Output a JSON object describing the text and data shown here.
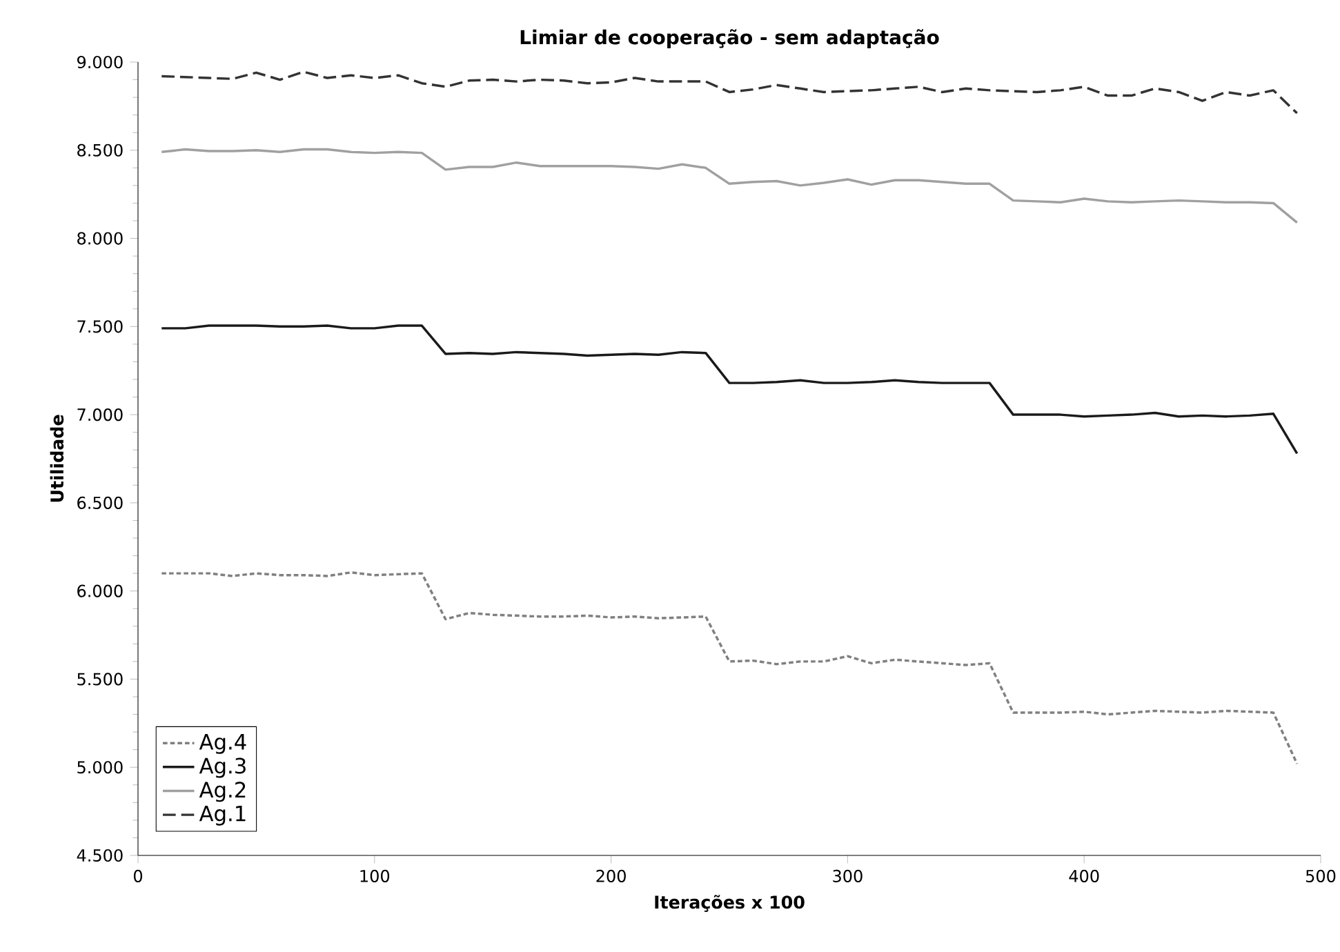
{
  "chart_data": {
    "type": "line",
    "title": "Limiar de cooperação - sem adaptação",
    "xlabel": "Iterações x 100",
    "ylabel": "Utilidade",
    "x": [
      10,
      20,
      30,
      40,
      50,
      60,
      70,
      80,
      90,
      100,
      110,
      120,
      130,
      140,
      150,
      160,
      170,
      180,
      190,
      200,
      210,
      220,
      230,
      240,
      250,
      260,
      270,
      280,
      290,
      300,
      310,
      320,
      330,
      340,
      350,
      360,
      370,
      380,
      390,
      400,
      410,
      420,
      430,
      440,
      450,
      460,
      470,
      480,
      490
    ],
    "series": [
      {
        "name": "Ag.4",
        "color": "#808080",
        "line_style": "dotted",
        "values": [
          6100,
          6100,
          6100,
          6085,
          6100,
          6090,
          6090,
          6085,
          6105,
          6090,
          6095,
          6100,
          5840,
          5875,
          5865,
          5860,
          5855,
          5855,
          5860,
          5850,
          5855,
          5845,
          5850,
          5855,
          5600,
          5605,
          5585,
          5600,
          5600,
          5630,
          5590,
          5610,
          5600,
          5590,
          5580,
          5590,
          5310,
          5310,
          5310,
          5315,
          5300,
          5310,
          5320,
          5315,
          5310,
          5320,
          5315,
          5310,
          5020
        ]
      },
      {
        "name": "Ag.3",
        "color": "#1a1a1a",
        "line_style": "solid",
        "values": [
          7490,
          7490,
          7505,
          7505,
          7505,
          7500,
          7500,
          7505,
          7490,
          7490,
          7505,
          7505,
          7345,
          7350,
          7345,
          7355,
          7350,
          7345,
          7335,
          7340,
          7345,
          7340,
          7355,
          7350,
          7180,
          7180,
          7185,
          7195,
          7180,
          7180,
          7185,
          7195,
          7185,
          7180,
          7180,
          7180,
          7000,
          7000,
          7000,
          6990,
          6995,
          7000,
          7010,
          6990,
          6995,
          6990,
          6995,
          7005,
          6780
        ]
      },
      {
        "name": "Ag.2",
        "color": "#a0a0a0",
        "line_style": "solid",
        "values": [
          8490,
          8505,
          8495,
          8495,
          8500,
          8490,
          8505,
          8505,
          8490,
          8485,
          8490,
          8485,
          8390,
          8405,
          8405,
          8430,
          8410,
          8410,
          8410,
          8410,
          8405,
          8395,
          8420,
          8400,
          8310,
          8320,
          8325,
          8300,
          8315,
          8335,
          8305,
          8330,
          8330,
          8320,
          8310,
          8310,
          8215,
          8210,
          8205,
          8225,
          8210,
          8205,
          8210,
          8215,
          8210,
          8205,
          8205,
          8200,
          8090
        ]
      },
      {
        "name": "Ag.1",
        "color": "#333333",
        "line_style": "dashed",
        "values": [
          8920,
          8915,
          8910,
          8905,
          8940,
          8900,
          8945,
          8910,
          8925,
          8910,
          8925,
          8880,
          8860,
          8895,
          8900,
          8890,
          8900,
          8895,
          8880,
          8885,
          8910,
          8890,
          8890,
          8890,
          8830,
          8845,
          8870,
          8850,
          8830,
          8835,
          8840,
          8850,
          8860,
          8830,
          8850,
          8840,
          8835,
          8830,
          8840,
          8860,
          8810,
          8810,
          8850,
          8830,
          8780,
          8830,
          8810,
          8840,
          8710
        ]
      }
    ],
    "xlim": [
      0,
      500
    ],
    "xticks": [
      0,
      100,
      200,
      300,
      400,
      500
    ],
    "ylim": [
      4500,
      9000
    ],
    "yticks": [
      {
        "value": 4500,
        "label": "4.500"
      },
      {
        "value": 5000,
        "label": "5.000"
      },
      {
        "value": 5500,
        "label": "5.500"
      },
      {
        "value": 6000,
        "label": "6.000"
      },
      {
        "value": 6500,
        "label": "6.500"
      },
      {
        "value": 7000,
        "label": "7.000"
      },
      {
        "value": 7500,
        "label": "7.500"
      },
      {
        "value": 8000,
        "label": "8.000"
      },
      {
        "value": 8500,
        "label": "8.500"
      },
      {
        "value": 9000,
        "label": "9.000"
      }
    ],
    "grid": false,
    "legend": "bottom left",
    "marker": "none"
  }
}
